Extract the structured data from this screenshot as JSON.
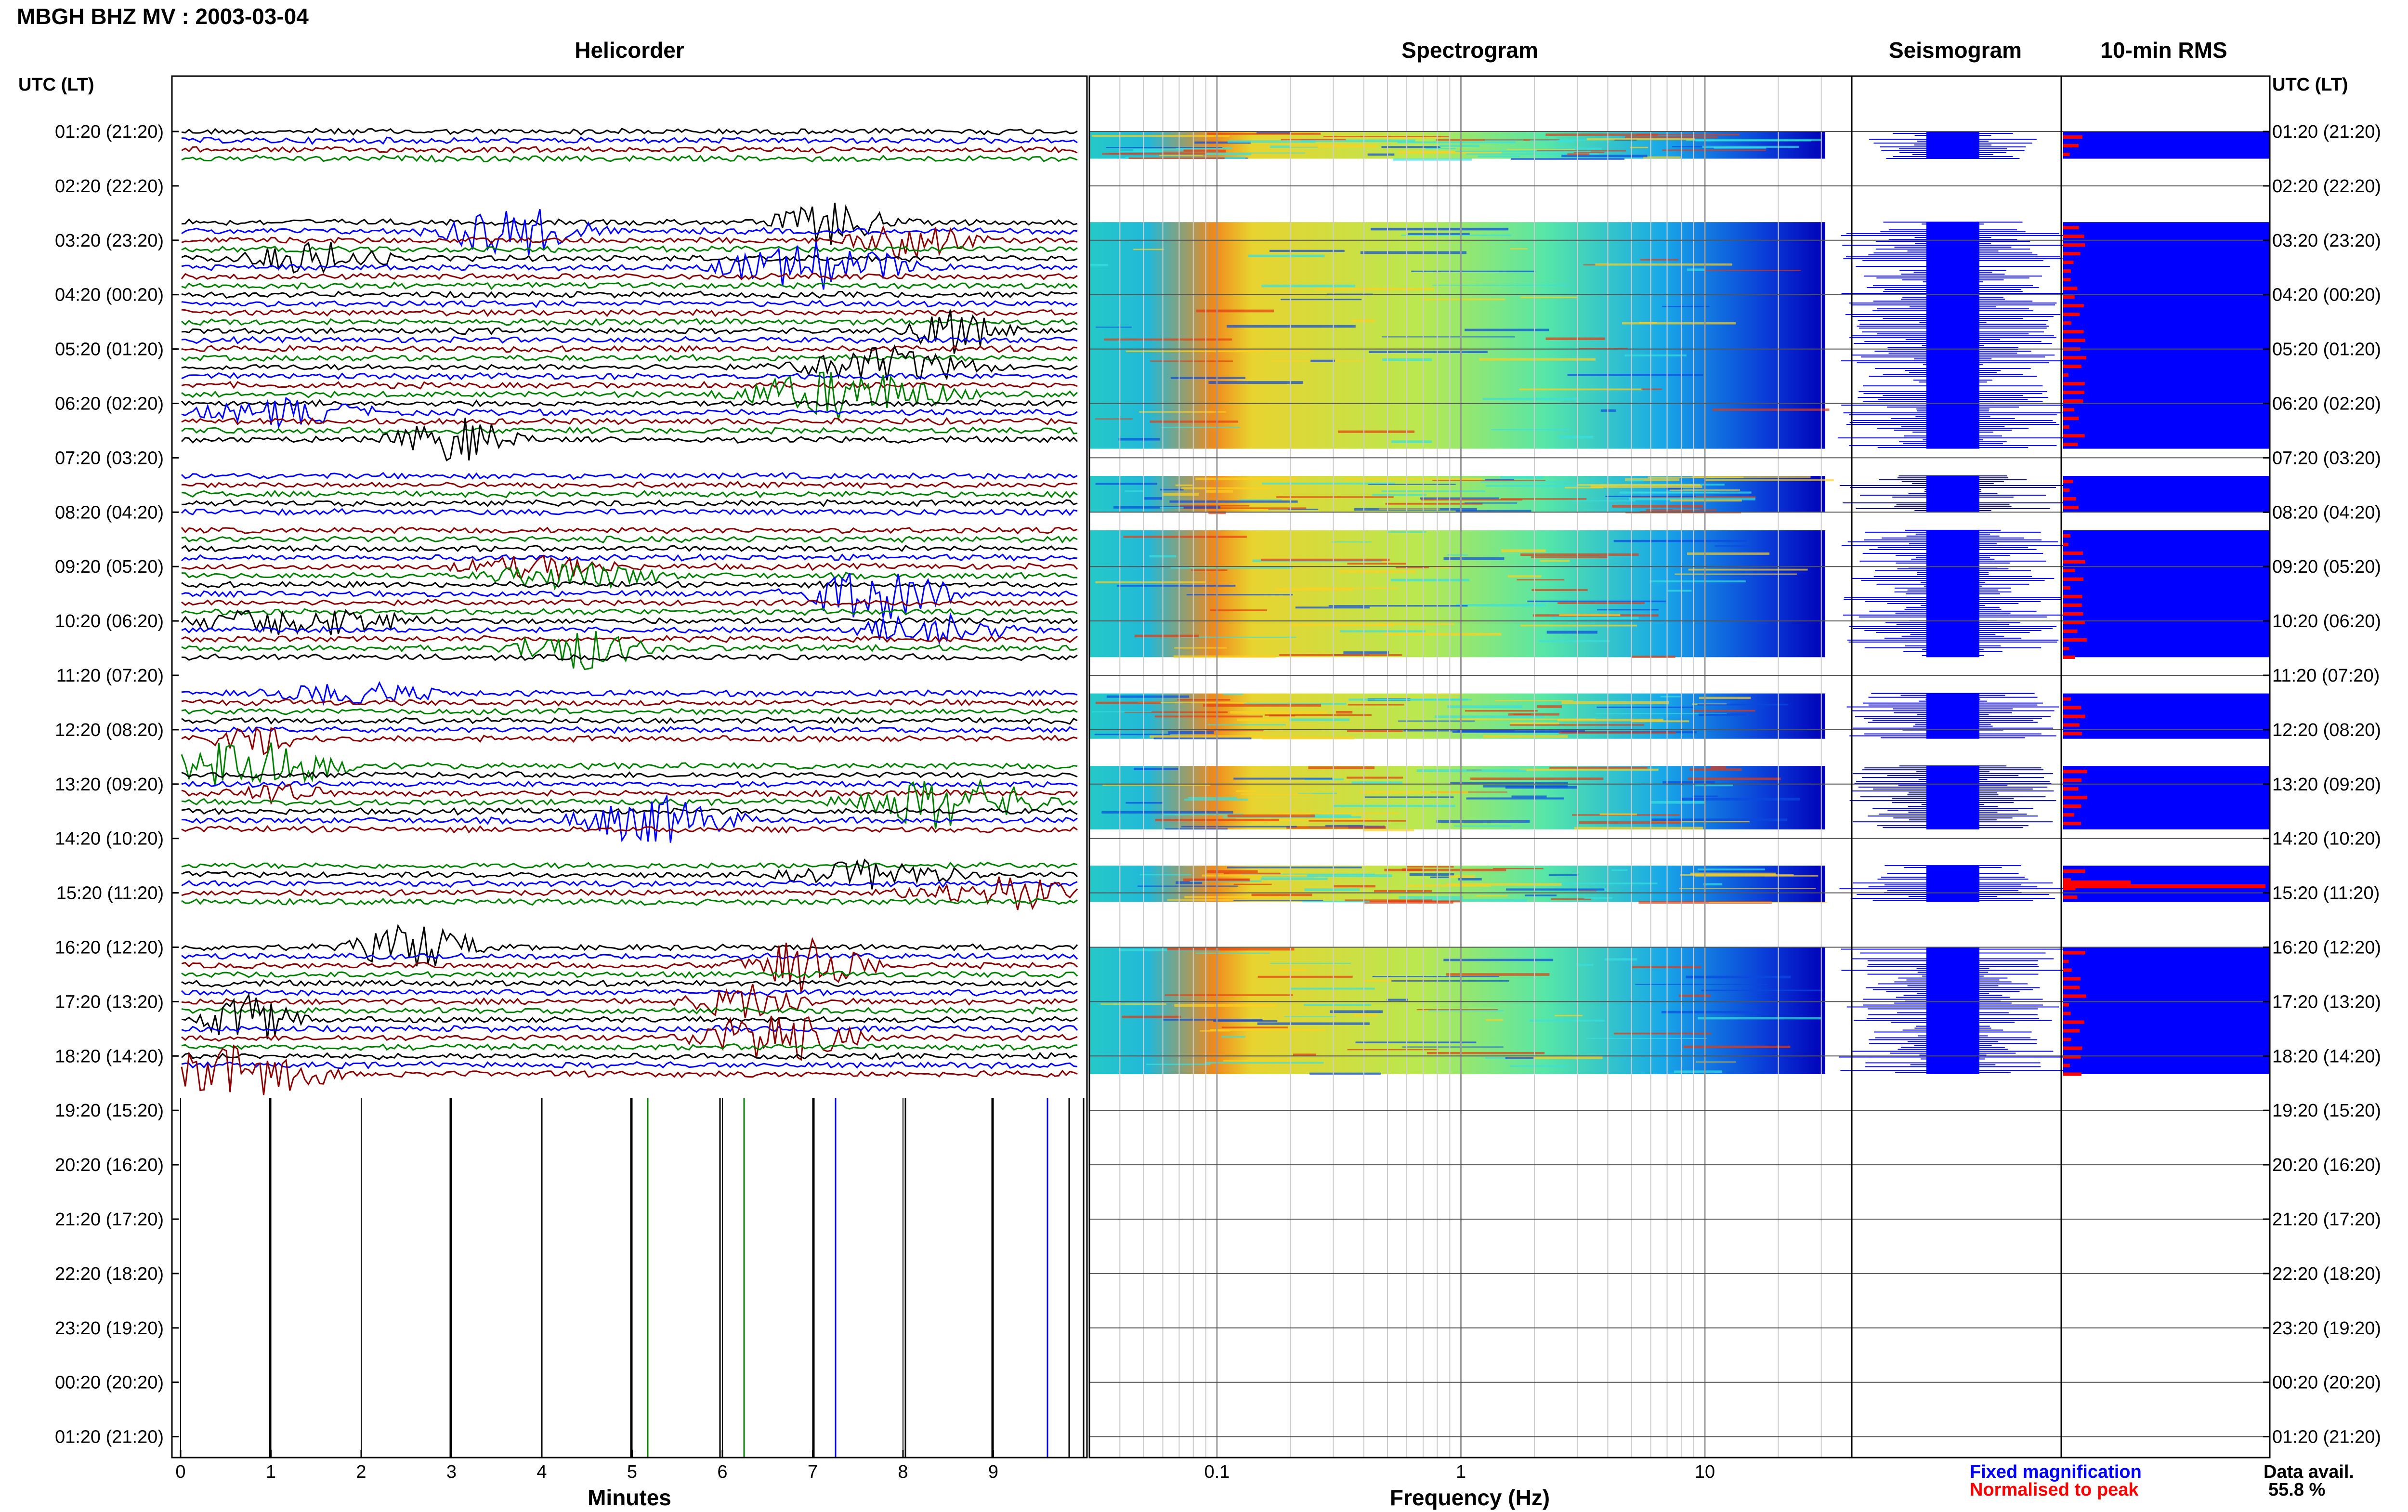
{
  "header": {
    "title": "MBGH BHZ MV : 2003-03-04"
  },
  "panels": {
    "helicorder": "Helicorder",
    "spectrogram": "Spectrogram",
    "seismogram": "Seismogram",
    "rms": "10-min RMS"
  },
  "time_axis": {
    "label_left": "UTC (LT)",
    "label_right": "UTC (LT)",
    "rows": [
      "01:20 (21:20)",
      "02:20 (22:20)",
      "03:20 (23:20)",
      "04:20 (00:20)",
      "05:20 (01:20)",
      "06:20 (02:20)",
      "07:20 (03:20)",
      "08:20 (04:20)",
      "09:20 (05:20)",
      "10:20 (06:20)",
      "11:20 (07:20)",
      "12:20 (08:20)",
      "13:20 (09:20)",
      "14:20 (10:20)",
      "15:20 (11:20)",
      "16:20 (12:20)",
      "17:20 (13:20)",
      "18:20 (14:20)",
      "19:20 (15:20)",
      "20:20 (16:20)",
      "21:20 (17:20)",
      "22:20 (18:20)",
      "23:20 (19:20)",
      "00:20 (20:20)",
      "01:20 (21:20)"
    ]
  },
  "helicorder_axis": {
    "xlabel": "Minutes",
    "ticks": [
      "0",
      "1",
      "2",
      "3",
      "4",
      "5",
      "6",
      "7",
      "8",
      "9"
    ]
  },
  "spectrogram_axis": {
    "xlabel": "Frequency (Hz)",
    "ticks": [
      "0.1",
      "1",
      "10"
    ]
  },
  "legend": {
    "fixed": "Fixed magnification",
    "normalised": "Normalised to peak",
    "fixed_color": "#0000ff",
    "normalised_color": "#ff0000"
  },
  "availability": {
    "label": "Data avail.",
    "value": "55.8 %"
  },
  "chart_data": {
    "type": "heatmap",
    "title": "MBGH BHZ MV : 2003-03-04",
    "xlabel_helicorder": "Minutes",
    "xlabel_spectrogram": "Frequency (Hz)",
    "helicorder_xlim": [
      0,
      10
    ],
    "spectrogram_xlim": [
      0.03,
      40
    ],
    "spectrogram_scale": "log",
    "trace_colors": [
      "#000000",
      "#0000ff",
      "#8b0000",
      "#008000"
    ],
    "data_segments_utc": [
      [
        "01:20",
        "01:50"
      ],
      [
        "03:00",
        "07:10"
      ],
      [
        "07:40",
        "08:20"
      ],
      [
        "08:40",
        "11:00"
      ],
      [
        "11:40",
        "12:30"
      ],
      [
        "13:00",
        "14:10"
      ],
      [
        "14:50",
        "15:30"
      ],
      [
        "16:20",
        "18:40"
      ]
    ],
    "rms_bar_color": "#0000ff",
    "rms_peak_color": "#ff0000",
    "data_availability_percent": 55.8
  }
}
